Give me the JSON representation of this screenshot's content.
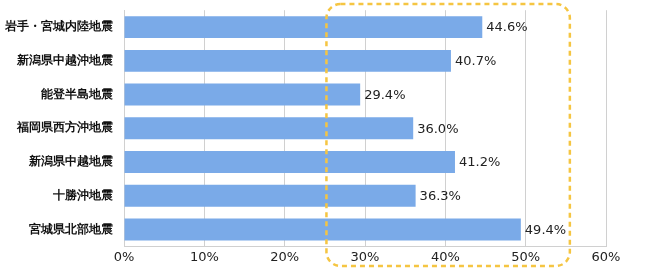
{
  "chart_data": {
    "type": "bar",
    "orientation": "horizontal",
    "categories": [
      "岩手・宮城内陸地震",
      "新潟県中越沖地震",
      "能登半島地震",
      "福岡県西方沖地震",
      "新潟県中越地震",
      "十勝沖地震",
      "宮城県北部地震"
    ],
    "values": [
      44.6,
      40.7,
      29.4,
      36.0,
      41.2,
      36.3,
      49.4
    ],
    "value_labels": [
      "44.6%",
      "40.7%",
      "29.4%",
      "36.0%",
      "41.2%",
      "36.3%",
      "49.4%"
    ],
    "color": "#7aaae8",
    "xlim": [
      0,
      60
    ],
    "xticks": [
      {
        "value": 0,
        "label": "0%"
      },
      {
        "value": 10,
        "label": "10%"
      },
      {
        "value": 20,
        "label": "20%"
      },
      {
        "value": 30,
        "label": "30%"
      },
      {
        "value": 40,
        "label": "40%"
      },
      {
        "value": 50,
        "label": "50%"
      },
      {
        "value": 60,
        "label": "60%"
      }
    ],
    "grid": true,
    "data_labels": true
  }
}
